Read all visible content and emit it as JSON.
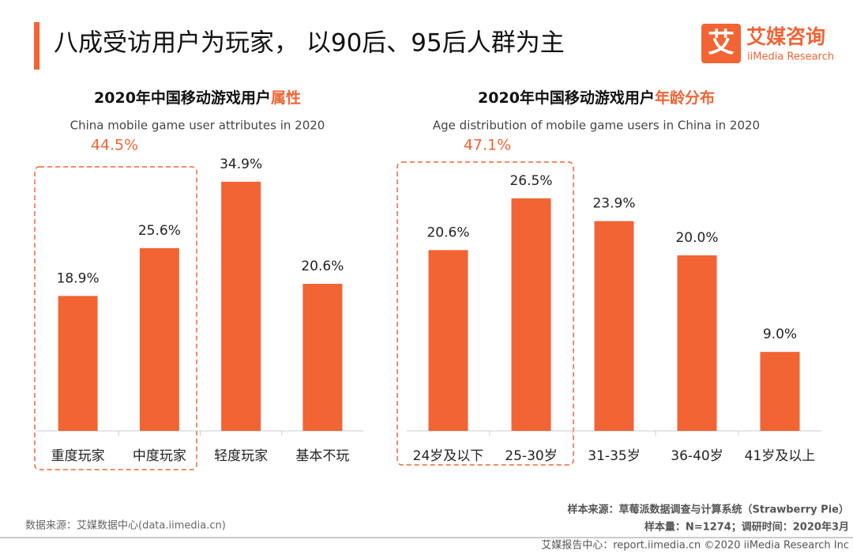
{
  "header": {
    "title": "八成受访用户为玩家， 以90后、95后人群为主",
    "logo_mark": "艾",
    "logo_name": "艾媒咨询",
    "logo_sub": "iiMedia Research"
  },
  "chart_data": [
    {
      "type": "bar",
      "title": "2020年中国移动游戏用户",
      "title_highlight": "属性",
      "subtitle": "China mobile game user attributes  in 2020",
      "categories": [
        "重度玩家",
        "中度玩家",
        "轻度玩家",
        "基本不玩"
      ],
      "values": [
        18.9,
        25.6,
        34.9,
        20.6
      ],
      "value_labels": [
        "18.9%",
        "25.6%",
        "34.9%",
        "20.6%"
      ],
      "color": "#f26434",
      "annotation": "44.5%"
    },
    {
      "type": "bar",
      "title": "2020年中国移动游戏用户",
      "title_highlight": "年龄分布",
      "subtitle": "Age distribution of mobile game users in China in 2020",
      "categories": [
        "24岁及以下",
        "25-30岁",
        "31-35岁",
        "36-40岁",
        "41岁及以上"
      ],
      "values": [
        20.6,
        26.5,
        23.9,
        20.0,
        9.0
      ],
      "value_labels": [
        "20.6%",
        "26.5%",
        "23.9%",
        "20.0%",
        "9.0%"
      ],
      "color": "#f26434",
      "annotation": "47.1%"
    }
  ],
  "footer": {
    "source": "数据来源：艾媒数据中心(data.iimedia.cn)",
    "sample_source": "样本来源：草莓派数据调查与计算系统（Strawberry Pie）",
    "sample_size": "样本量：N=1274；调研时间：2020年3月",
    "credit": "艾媒报告中心：report.iimedia.cn  ©2020  iiMedia Research Inc"
  }
}
